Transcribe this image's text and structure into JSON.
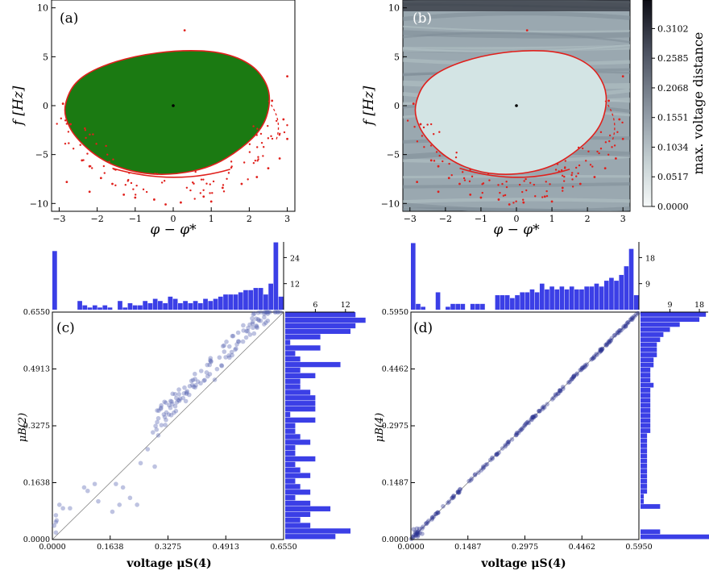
{
  "figure": {
    "panels": [
      {
        "id": "a",
        "label": "(a)"
      },
      {
        "id": "b",
        "label": "(b)"
      },
      {
        "id": "c",
        "label": "(c)"
      },
      {
        "id": "d",
        "label": "(d)"
      }
    ]
  },
  "chart_data": [
    {
      "panel": "(a)",
      "type": "scatter",
      "description_region": "green basin of attraction with red boundary points",
      "xlabel": "φ − φ*",
      "ylabel": "f [Hz]",
      "xlim": [
        -3.2,
        3.2
      ],
      "ylim": [
        -10.8,
        10.8
      ],
      "x_ticks": [
        "−3",
        "−2",
        "−1",
        "0",
        "1",
        "2",
        "3"
      ],
      "y_ticks": [
        "−10",
        "−5",
        "0",
        "5",
        "10"
      ],
      "colors": {
        "basin": "#1b7a12",
        "boundary": "#e0201c",
        "fixed_point": "#000000"
      },
      "series": [
        {
          "values": [
            [
              -2.9,
              0.2
            ],
            [
              -2.7,
              -1.9
            ],
            [
              -2.8,
              -7.8
            ],
            [
              -2.4,
              -5.6
            ],
            [
              -2.2,
              -6.2
            ],
            [
              -1.9,
              -7.4
            ],
            [
              -1.6,
              -8.0
            ],
            [
              -1.3,
              -9.1
            ],
            [
              -1.0,
              -9.4
            ],
            [
              -0.5,
              -9.6
            ],
            [
              0.2,
              -9.9
            ],
            [
              0.8,
              -9.3
            ],
            [
              1.3,
              -8.4
            ],
            [
              1.8,
              -8.0
            ],
            [
              2.2,
              -7.3
            ],
            [
              2.5,
              -6.4
            ],
            [
              2.8,
              -5.4
            ],
            [
              3.0,
              -3.4
            ],
            [
              2.9,
              -1.4
            ],
            [
              2.6,
              0.5
            ],
            [
              3.0,
              3.0
            ],
            [
              0.3,
              7.7
            ],
            [
              -2.2,
              -8.8
            ],
            [
              1.0,
              -9.8
            ],
            [
              -0.2,
              -10.1
            ]
          ]
        }
      ]
    },
    {
      "panel": "(b)",
      "type": "heatmap",
      "xlabel": "φ − φ*",
      "ylabel": "f [Hz]",
      "xlim": [
        -3.2,
        3.2
      ],
      "ylim": [
        -10.8,
        10.8
      ],
      "x_ticks": [
        "−3",
        "−2",
        "−1",
        "0",
        "1",
        "2",
        "3"
      ],
      "y_ticks": [
        "−10",
        "−5",
        "0",
        "5",
        "10"
      ],
      "colorbar": {
        "label": "max. voltage distance",
        "ticks": [
          "0.0000",
          "0.0517",
          "0.1034",
          "0.1551",
          "0.2068",
          "0.2585",
          "0.3102"
        ],
        "range": [
          0.0,
          0.36
        ]
      },
      "colors": {
        "basin": "#d3e4e4",
        "background": "#93a2ab",
        "boundary": "#e0201c"
      }
    },
    {
      "panel": "(c)",
      "type": "scatter",
      "xlabel": "voltage μS(4)",
      "ylabel": "μB(2)",
      "xlim": [
        0.0,
        0.655
      ],
      "ylim": [
        0.0,
        0.655
      ],
      "x_ticks": [
        "0.0000",
        "0.1638",
        "0.3275",
        "0.4913",
        "0.6550"
      ],
      "y_ticks": [
        "0.0000",
        "0.1638",
        "0.3275",
        "0.4913",
        "0.6550"
      ],
      "top_hist_ticks": [
        "12",
        "24"
      ],
      "right_hist_ticks": [
        "6",
        "12"
      ],
      "top_hist": [
        27,
        0,
        0,
        0,
        0,
        4,
        2,
        1,
        2,
        1,
        2,
        1,
        0,
        4,
        1,
        3,
        2,
        2,
        4,
        3,
        5,
        4,
        3,
        6,
        5,
        3,
        4,
        3,
        4,
        3,
        5,
        4,
        5,
        6,
        7,
        7,
        7,
        8,
        9,
        9,
        10,
        10,
        7,
        12,
        31,
        6
      ],
      "right_hist": [
        14,
        16,
        14,
        13,
        7,
        1,
        7,
        2,
        3,
        11,
        3,
        6,
        3,
        3,
        5,
        6,
        6,
        6,
        1,
        6,
        2,
        2,
        3,
        5,
        2,
        2,
        6,
        2,
        3,
        5,
        2,
        3,
        5,
        2,
        5,
        9,
        5,
        3,
        5,
        13,
        10
      ],
      "colors": {
        "points": "#5560b0",
        "hist": "#3b3fe6"
      },
      "series": [
        {
          "values": [
            [
              0.01,
              0.02
            ],
            [
              0.01,
              0.05
            ],
            [
              0.01,
              0.07
            ],
            [
              0.02,
              0.1
            ],
            [
              0.005,
              0.04
            ],
            [
              0.012,
              0.055
            ],
            [
              0.03,
              0.09
            ],
            [
              0.05,
              0.09
            ],
            [
              0.09,
              0.15
            ],
            [
              0.1,
              0.14
            ],
            [
              0.12,
              0.16
            ],
            [
              0.13,
              0.11
            ],
            [
              0.17,
              0.08
            ],
            [
              0.19,
              0.1
            ],
            [
              0.18,
              0.16
            ],
            [
              0.2,
              0.15
            ],
            [
              0.22,
              0.12
            ],
            [
              0.24,
              0.1
            ],
            [
              0.25,
              0.22
            ],
            [
              0.27,
              0.26
            ],
            [
              0.29,
              0.21
            ],
            [
              0.3,
              0.3
            ],
            [
              0.32,
              0.33
            ],
            [
              0.33,
              0.36
            ],
            [
              0.34,
              0.39
            ],
            [
              0.35,
              0.37
            ],
            [
              0.36,
              0.4
            ],
            [
              0.38,
              0.42
            ],
            [
              0.4,
              0.44
            ],
            [
              0.42,
              0.45
            ],
            [
              0.44,
              0.47
            ],
            [
              0.46,
              0.46
            ],
            [
              0.48,
              0.5
            ],
            [
              0.5,
              0.53
            ],
            [
              0.52,
              0.55
            ],
            [
              0.54,
              0.57
            ],
            [
              0.56,
              0.59
            ],
            [
              0.58,
              0.61
            ],
            [
              0.6,
              0.62
            ],
            [
              0.6,
              0.64
            ],
            [
              0.61,
              0.63
            ],
            [
              0.61,
              0.65
            ],
            [
              0.6,
              0.65
            ],
            [
              0.59,
              0.63
            ],
            [
              0.55,
              0.6
            ]
          ]
        }
      ]
    },
    {
      "panel": "(d)",
      "type": "scatter",
      "xlabel": "voltage μS(4)",
      "ylabel": "μB(4)",
      "xlim": [
        0.0,
        0.595
      ],
      "ylim": [
        0.0,
        0.595
      ],
      "x_ticks": [
        "0.0000",
        "0.1487",
        "0.2975",
        "0.4462",
        "0.5950"
      ],
      "y_ticks": [
        "0.0000",
        "0.1487",
        "0.2975",
        "0.4462",
        "0.5950"
      ],
      "top_hist_ticks": [
        "9",
        "18"
      ],
      "right_hist_ticks": [
        "9",
        "18"
      ],
      "top_hist": [
        23,
        2,
        1,
        0,
        0,
        6,
        0,
        1,
        2,
        2,
        2,
        0,
        2,
        2,
        2,
        0,
        0,
        5,
        5,
        5,
        4,
        5,
        6,
        6,
        7,
        6,
        9,
        7,
        8,
        7,
        8,
        7,
        8,
        7,
        7,
        8,
        8,
        9,
        8,
        10,
        11,
        10,
        12,
        15,
        21,
        5
      ],
      "right_hist": [
        20,
        18,
        12,
        9,
        7,
        6,
        5,
        5,
        5,
        4,
        4,
        3,
        3,
        3,
        4,
        3,
        3,
        3,
        3,
        3,
        3,
        3,
        3,
        3,
        2,
        2,
        2,
        2,
        2,
        2,
        2,
        2,
        2,
        2,
        2,
        2,
        1,
        1,
        6,
        0,
        0,
        0,
        0,
        6,
        25
      ],
      "colors": {
        "points": "#2a3390",
        "hist": "#3b3fe6"
      }
    }
  ]
}
